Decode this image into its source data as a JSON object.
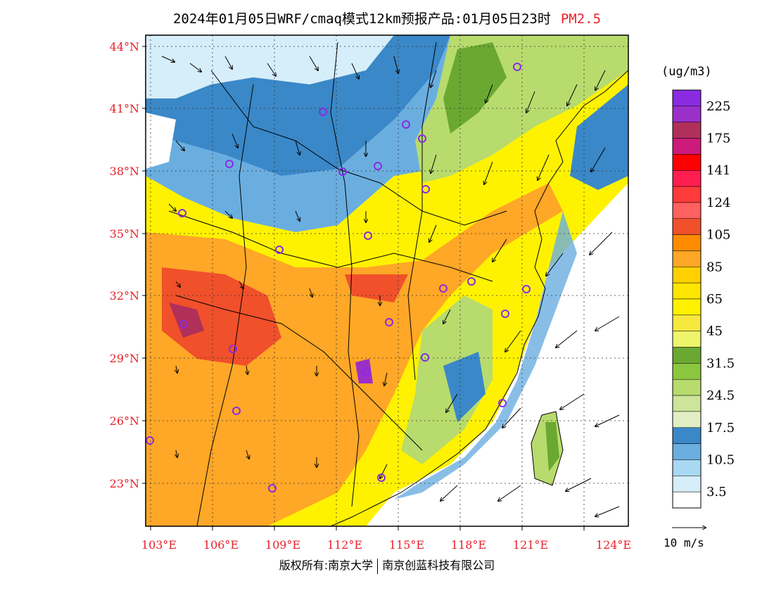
{
  "title": {
    "main": "2024年01月05日WRF/cmaq模式12km预报产品:01月05日23时",
    "pollutant": "PM2.5"
  },
  "map": {
    "lon_range": [
      103,
      124
    ],
    "lat_range": [
      21,
      44.5
    ],
    "lat_ticks": [
      "44°N",
      "41°N",
      "38°N",
      "35°N",
      "32°N",
      "29°N",
      "26°N",
      "23°N"
    ],
    "lon_ticks": [
      "103°E",
      "106°E",
      "109°E",
      "112°E",
      "115°E",
      "118°E",
      "121°E",
      "124°E"
    ],
    "grid": "dotted",
    "field": "PM2.5 concentration with wind vectors"
  },
  "legend": {
    "unit": "(ug/m3)",
    "bins": [
      {
        "color": "#8a2be2",
        "label": "225"
      },
      {
        "color": "#9b30c8",
        "label": ""
      },
      {
        "color": "#b0305a",
        "label": "175"
      },
      {
        "color": "#cc1a7a",
        "label": ""
      },
      {
        "color": "#ff0000",
        "label": "141"
      },
      {
        "color": "#ff1e50",
        "label": ""
      },
      {
        "color": "#ff3a3a",
        "label": "124"
      },
      {
        "color": "#ff6060",
        "label": ""
      },
      {
        "color": "#f0502a",
        "label": "105"
      },
      {
        "color": "#ff8c00",
        "label": ""
      },
      {
        "color": "#ffa726",
        "label": "85"
      },
      {
        "color": "#ffd000",
        "label": ""
      },
      {
        "color": "#ffe600",
        "label": "65"
      },
      {
        "color": "#fff200",
        "label": ""
      },
      {
        "color": "#f7e840",
        "label": "45"
      },
      {
        "color": "#eef56a",
        "label": ""
      },
      {
        "color": "#6aa832",
        "label": "31.5"
      },
      {
        "color": "#8cc63f",
        "label": ""
      },
      {
        "color": "#b8db6e",
        "label": "24.5"
      },
      {
        "color": "#cce59a",
        "label": ""
      },
      {
        "color": "#e2efc4",
        "label": "17.5"
      },
      {
        "color": "#3a88c8",
        "label": ""
      },
      {
        "color": "#6aaee0",
        "label": "10.5"
      },
      {
        "color": "#a8d8f2",
        "label": ""
      },
      {
        "color": "#d6eefa",
        "label": "3.5"
      },
      {
        "color": "#ffffff",
        "label": ""
      }
    ]
  },
  "wind_reference": {
    "label": "10 m/s",
    "speed_ms": 10
  },
  "footer": {
    "copyright": "版权所有:南京大学",
    "company": "南京创蓝科技有限公司"
  }
}
